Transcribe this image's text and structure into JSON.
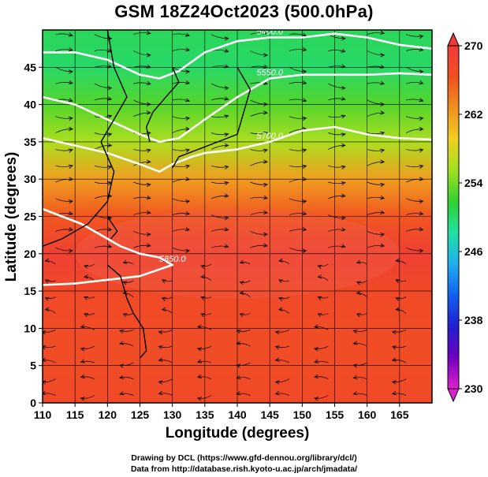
{
  "figure": {
    "title": "GSM 18Z24Oct2023 (500.0hPa)",
    "credit_line1": "Drawing by DCL (https://www.gfd-dennou.org/library/dcl/)",
    "credit_line2": "Data from http://database.rish.kyoto-u.ac.jp/arch/jmadata/"
  },
  "chart_data": {
    "type": "heatmap",
    "title": "GSM 18Z24Oct2023 (500.0hPa)",
    "xlabel": "Longitude (degrees)",
    "ylabel": "Latitude  (degrees)",
    "xlim": [
      110,
      170
    ],
    "ylim": [
      0,
      50
    ],
    "xticks": [
      110,
      115,
      120,
      125,
      130,
      135,
      140,
      145,
      150,
      155,
      160,
      165
    ],
    "yticks": [
      0,
      5,
      10,
      15,
      20,
      25,
      30,
      35,
      40,
      45
    ],
    "grid": true,
    "colorbar": {
      "min": 230,
      "max": 270,
      "ticks": [
        230,
        238,
        246,
        254,
        262,
        270
      ],
      "colors": [
        "#e020d0",
        "#7000c0",
        "#2020d0",
        "#1060f0",
        "#20b0f0",
        "#20e0a0",
        "#30d030",
        "#a0e020",
        "#f0d020",
        "#f09020",
        "#f05020",
        "#f03a3a"
      ]
    },
    "temperature_field_by_latitude": [
      {
        "lat": 50,
        "value": 250.5
      },
      {
        "lat": 45,
        "value": 250.0
      },
      {
        "lat": 40,
        "value": 253.0
      },
      {
        "lat": 35,
        "value": 256.0
      },
      {
        "lat": 30,
        "value": 262.0
      },
      {
        "lat": 25,
        "value": 266.0
      },
      {
        "lat": 20,
        "value": 269.0
      },
      {
        "lat": 15,
        "value": 267.5
      },
      {
        "lat": 10,
        "value": 267.0
      },
      {
        "lat": 5,
        "value": 267.0
      },
      {
        "lat": 0,
        "value": 267.5
      }
    ],
    "contours": [
      {
        "label": "5700.0",
        "points": [
          [
            110,
            35.5
          ],
          [
            115,
            34.5
          ],
          [
            120,
            33.5
          ],
          [
            125,
            32
          ],
          [
            128,
            31
          ],
          [
            130,
            32
          ],
          [
            133,
            33
          ],
          [
            135,
            33.5
          ],
          [
            140,
            34
          ],
          [
            145,
            35
          ],
          [
            150,
            36.5
          ],
          [
            155,
            37
          ],
          [
            160,
            36
          ],
          [
            165,
            35.5
          ],
          [
            170,
            35.3
          ]
        ]
      },
      {
        "label": "5850.0",
        "points": [
          [
            110,
            26
          ],
          [
            113,
            25
          ],
          [
            116,
            24
          ],
          [
            119,
            22.5
          ],
          [
            122,
            21
          ],
          [
            125,
            20
          ],
          [
            128,
            19.5
          ],
          [
            130,
            18.5
          ],
          [
            125,
            17
          ],
          [
            120,
            16.5
          ],
          [
            115,
            16
          ],
          [
            110,
            15.8
          ]
        ]
      },
      {
        "label": "5550.0",
        "points": [
          [
            110,
            41
          ],
          [
            115,
            40
          ],
          [
            120,
            38
          ],
          [
            125,
            36
          ],
          [
            128,
            35
          ],
          [
            131,
            35.5
          ],
          [
            135,
            38
          ],
          [
            140,
            41
          ],
          [
            145,
            43.5
          ],
          [
            150,
            44
          ],
          [
            155,
            44
          ],
          [
            160,
            44
          ],
          [
            165,
            44.2
          ],
          [
            170,
            44
          ]
        ]
      },
      {
        "label": "5400.0",
        "points": [
          [
            110,
            47
          ],
          [
            115,
            47
          ],
          [
            120,
            46
          ],
          [
            125,
            44
          ],
          [
            128,
            43.5
          ],
          [
            131,
            44.5
          ],
          [
            135,
            47
          ],
          [
            140,
            48.5
          ],
          [
            145,
            49
          ],
          [
            150,
            49
          ],
          [
            155,
            49.5
          ],
          [
            160,
            49
          ],
          [
            165,
            48
          ],
          [
            170,
            47.5
          ]
        ]
      }
    ],
    "wind_streamline_flow": [
      {
        "lat": 45,
        "u": 1.0,
        "v": -0.15
      },
      {
        "lat": 35,
        "u": 1.0,
        "v": 0.1
      },
      {
        "lat": 25,
        "u": 1.0,
        "v": 0.0
      },
      {
        "lat": 15,
        "u": -0.6,
        "v": 0.1
      },
      {
        "lat": 5,
        "u": -0.8,
        "v": 0.0
      }
    ]
  }
}
